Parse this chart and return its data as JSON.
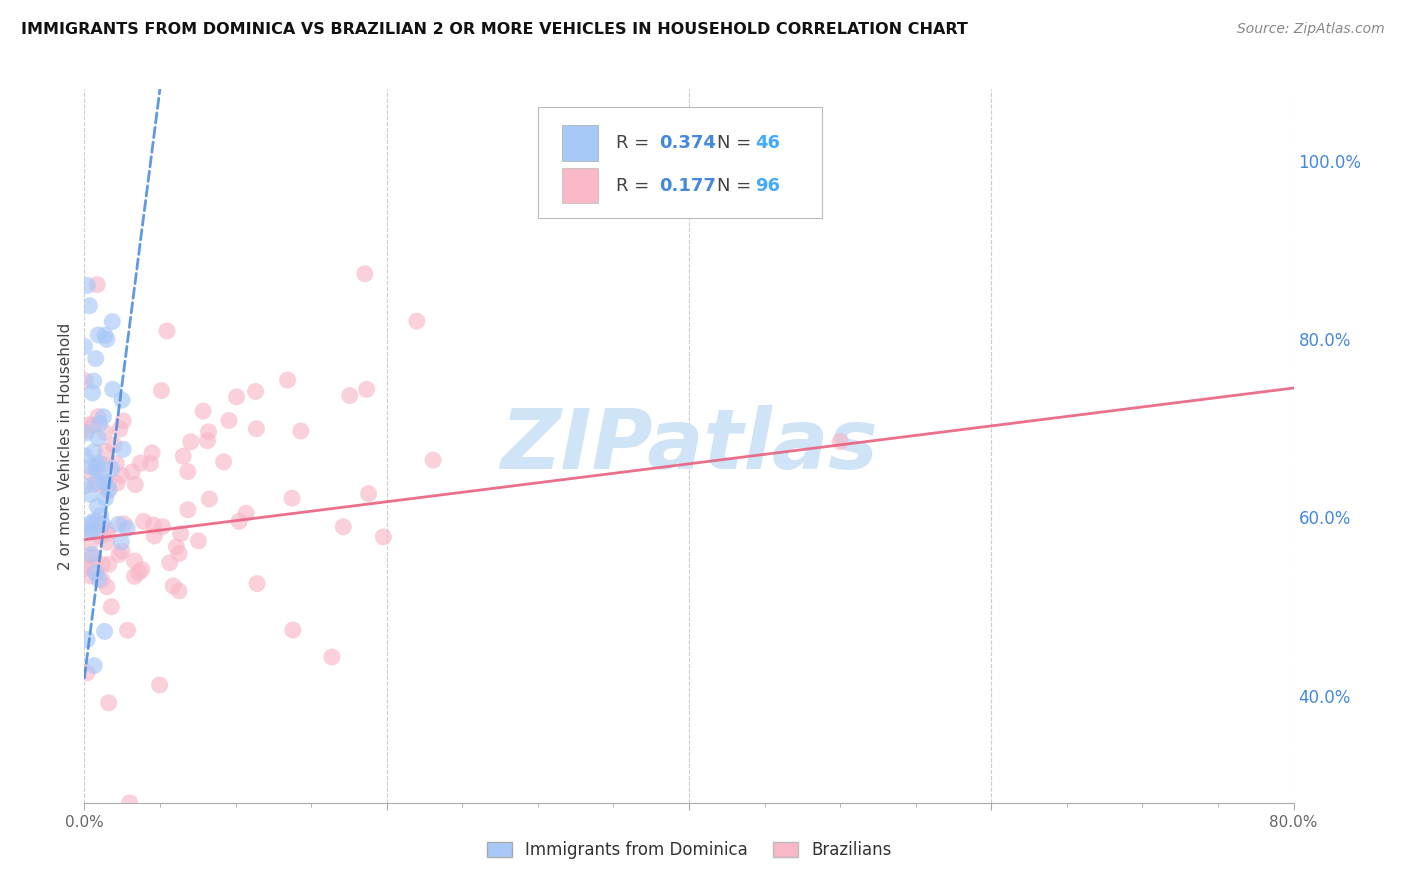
{
  "title": "IMMIGRANTS FROM DOMINICA VS BRAZILIAN 2 OR MORE VEHICLES IN HOUSEHOLD CORRELATION CHART",
  "source": "Source: ZipAtlas.com",
  "ylabel": "2 or more Vehicles in Household",
  "xlim": [
    0.0,
    0.8
  ],
  "ylim": [
    0.28,
    1.08
  ],
  "color_dominica": "#a8c8f8",
  "color_brazil": "#f8b8c8",
  "color_dominica_line": "#4488dd",
  "color_brazil_line": "#e86080",
  "color_tick_blue": "#4488dd",
  "color_n_blue": "#44aaff",
  "watermark_color": "#d0e4f8",
  "dom_line_x0": 0.0,
  "dom_line_y0": 0.42,
  "dom_line_x1": 0.05,
  "dom_line_y1": 1.08,
  "bra_line_x0": 0.0,
  "bra_line_y0": 0.575,
  "bra_line_x1": 0.8,
  "bra_line_y1": 0.745
}
